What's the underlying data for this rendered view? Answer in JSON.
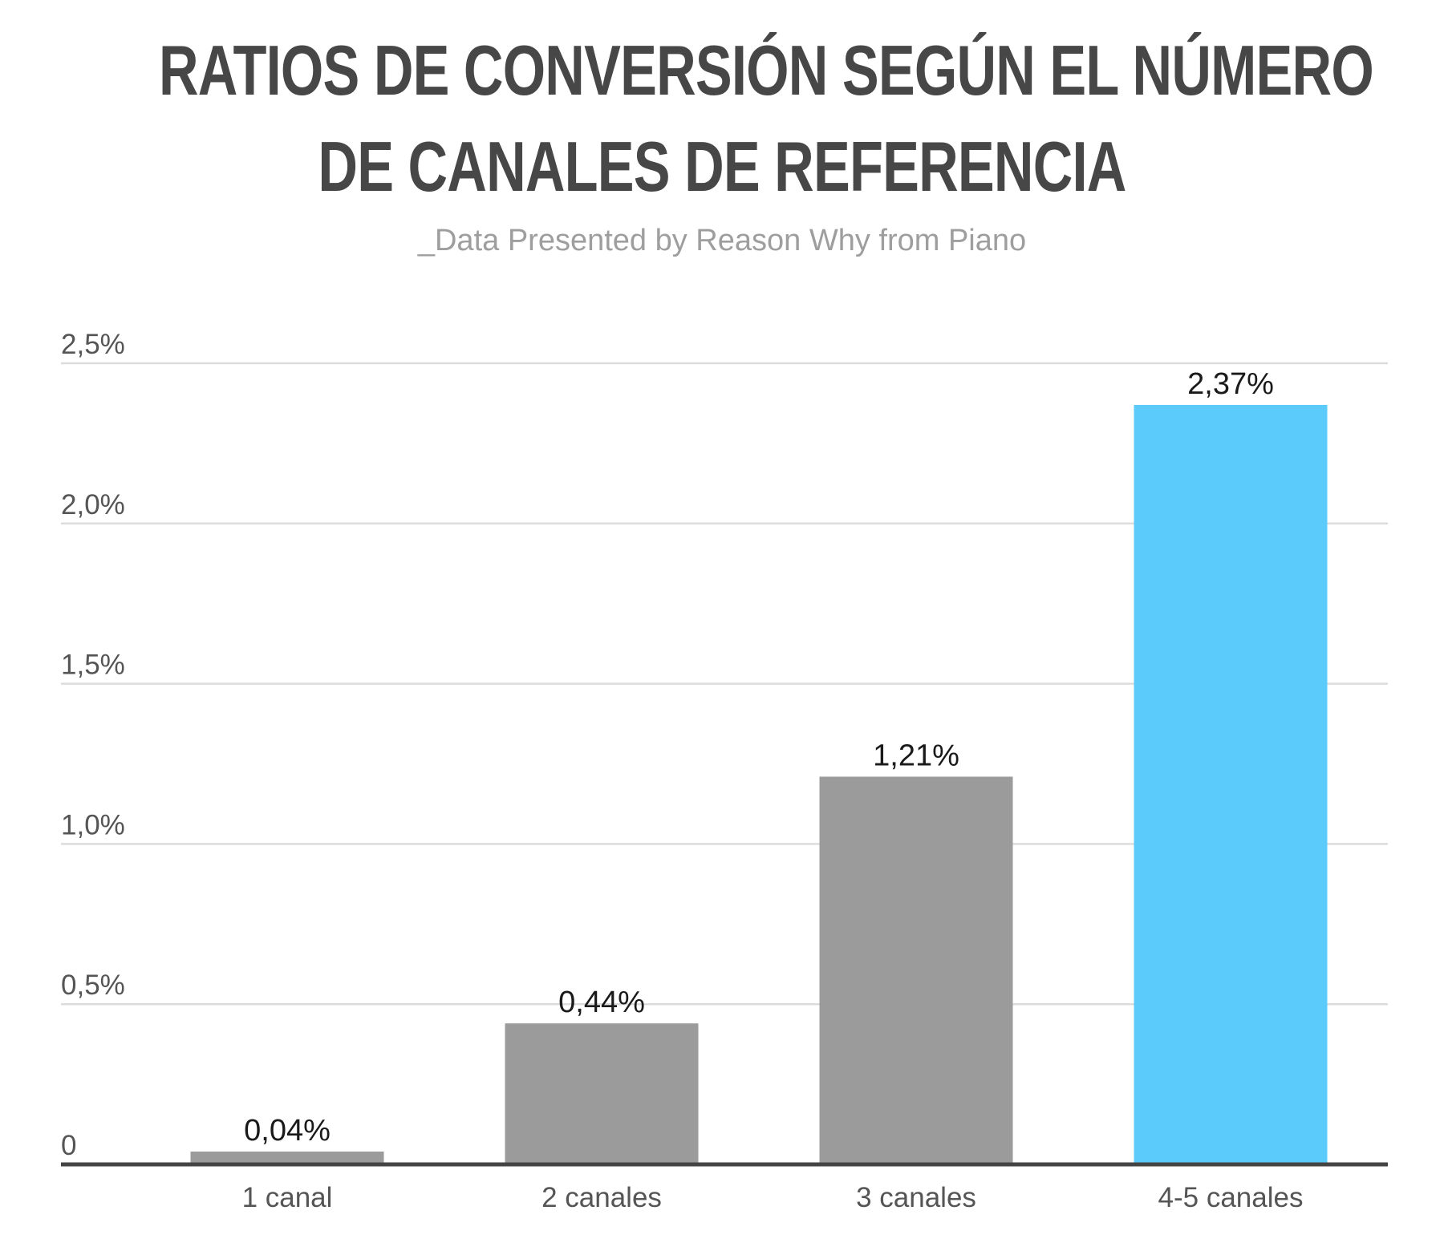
{
  "title_line1": "RATIOS DE CONVERSIÓN SEGÚN EL NÚMERO",
  "title_line2": "DE CANALES DE REFERENCIA",
  "subtitle": "_Data Presented by Reason Why from Piano",
  "chart_data": {
    "type": "bar",
    "title": "RATIOS DE CONVERSIÓN SEGÚN EL NÚMERO DE CANALES DE REFERENCIA",
    "categories": [
      "1 canal",
      "2 canales",
      "3 canales",
      "4-5 canales"
    ],
    "values": [
      0.04,
      0.44,
      1.21,
      2.37
    ],
    "value_labels": [
      "0,04%",
      "0,44%",
      "1,21%",
      "2,37%"
    ],
    "unit": "%",
    "ylim": [
      0,
      2.5
    ],
    "yticks": [
      0,
      0.5,
      1.0,
      1.5,
      2.0,
      2.5
    ],
    "ytick_labels": [
      "0",
      "0,5%",
      "1,0%",
      "1,5%",
      "2,0%",
      "2,5%"
    ],
    "xlabel": "",
    "ylabel": "",
    "grid": true,
    "legend": "none",
    "colors": {
      "default_bar": "#9b9b9b",
      "highlight_bar": "#5bcbfc",
      "gridline": "#dcdcdc",
      "baseline": "#444444"
    },
    "bar_colors": [
      "#9b9b9b",
      "#9b9b9b",
      "#9b9b9b",
      "#5bcbfc"
    ]
  }
}
